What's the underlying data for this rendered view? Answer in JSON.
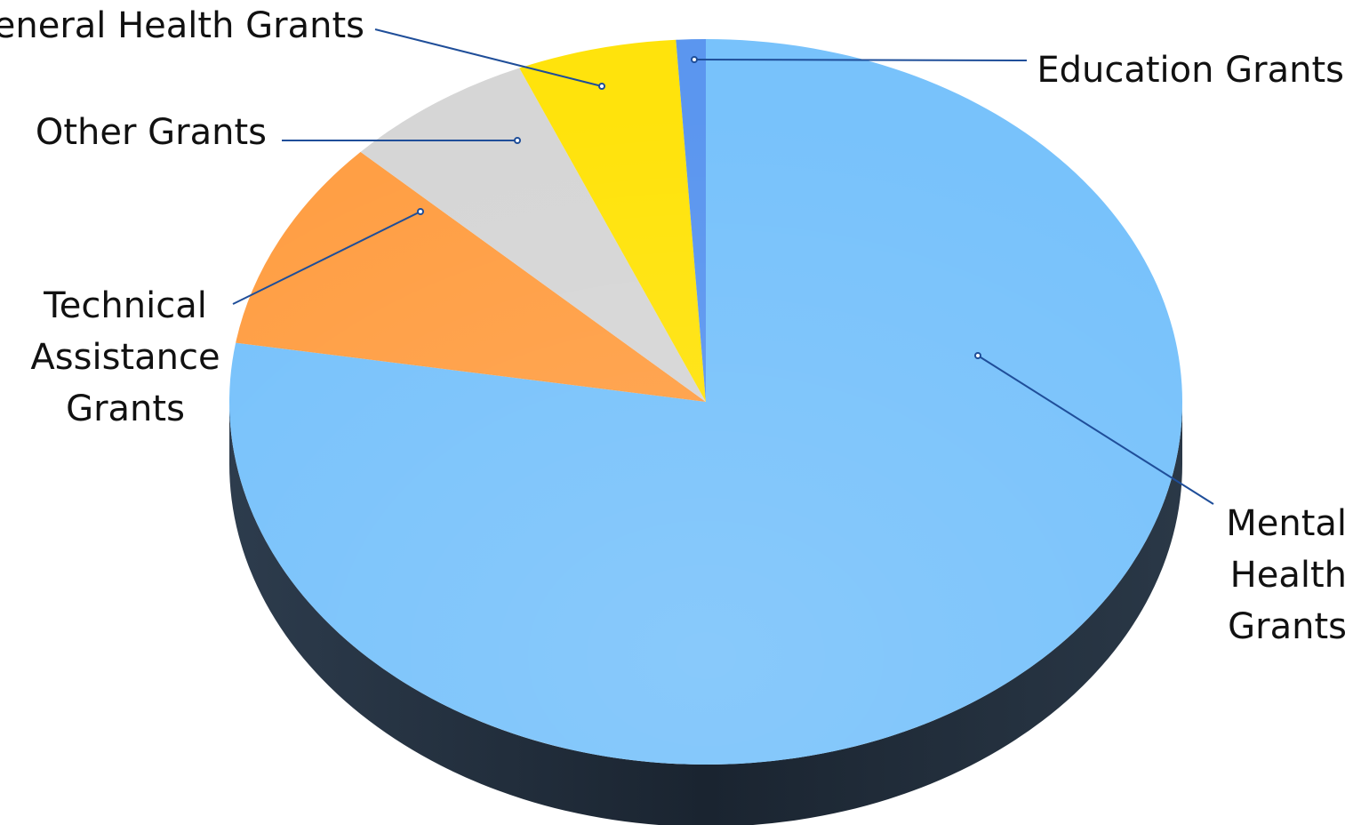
{
  "chart_data": {
    "type": "pie",
    "title": "",
    "start_angle_deg": 0,
    "direction": "clockwise",
    "slices": [
      {
        "label": "Mental Health Grants",
        "value": 77.6,
        "color": "#78c2fb"
      },
      {
        "label": "Technical Assistance Grants",
        "value": 9.5,
        "color": "#ff9f45"
      },
      {
        "label": "Other Grants",
        "value": 6.5,
        "color": "#d6d6d6"
      },
      {
        "label": "General Health Grants",
        "value": 5.4,
        "color": "#ffe30c"
      },
      {
        "label": "Education Grants",
        "value": 1.0,
        "color": "#5b96ef"
      }
    ],
    "side_color": "#1c2733",
    "leader_color": "#1f4e99",
    "legend": "none",
    "style": "3d"
  }
}
